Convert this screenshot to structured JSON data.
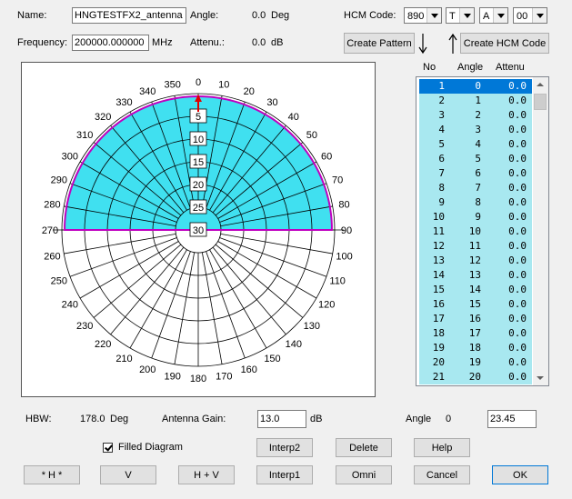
{
  "top": {
    "name_label": "Name:",
    "name_value": "HNGTESTFX2_antenna",
    "angle_label": "Angle:",
    "angle_value": "0.0",
    "angle_unit": "Deg",
    "hcm_label": "HCM Code:",
    "hcm_combo1": "890",
    "hcm_combo2": "T",
    "hcm_combo3": "A",
    "hcm_combo4": "00",
    "freq_label": "Frequency:",
    "freq_value": "200000.000000",
    "freq_unit": "MHz",
    "atten_label": "Attenu.:",
    "atten_value": "0.0",
    "atten_unit": "dB",
    "create_pattern": "Create Pattern",
    "create_hcm": "Create HCM Code"
  },
  "list": {
    "headers": [
      "No",
      "Angle",
      "Attenu"
    ],
    "rows": [
      [
        "1",
        "0",
        "0.0"
      ],
      [
        "2",
        "1",
        "0.0"
      ],
      [
        "3",
        "2",
        "0.0"
      ],
      [
        "4",
        "3",
        "0.0"
      ],
      [
        "5",
        "4",
        "0.0"
      ],
      [
        "6",
        "5",
        "0.0"
      ],
      [
        "7",
        "6",
        "0.0"
      ],
      [
        "8",
        "7",
        "0.0"
      ],
      [
        "9",
        "8",
        "0.0"
      ],
      [
        "10",
        "9",
        "0.0"
      ],
      [
        "11",
        "10",
        "0.0"
      ],
      [
        "12",
        "11",
        "0.0"
      ],
      [
        "13",
        "12",
        "0.0"
      ],
      [
        "14",
        "13",
        "0.0"
      ],
      [
        "15",
        "14",
        "0.0"
      ],
      [
        "16",
        "15",
        "0.0"
      ],
      [
        "17",
        "16",
        "0.0"
      ],
      [
        "18",
        "17",
        "0.0"
      ],
      [
        "19",
        "18",
        "0.0"
      ],
      [
        "20",
        "19",
        "0.0"
      ],
      [
        "21",
        "20",
        "0.0"
      ]
    ]
  },
  "polar": {
    "angle_labels": [
      "0",
      "10",
      "20",
      "30",
      "40",
      "50",
      "60",
      "70",
      "80",
      "90",
      "100",
      "110",
      "120",
      "130",
      "140",
      "150",
      "160",
      "170",
      "180",
      "190",
      "200",
      "210",
      "220",
      "230",
      "240",
      "250",
      "260",
      "270",
      "280",
      "290",
      "300",
      "310",
      "320",
      "330",
      "340",
      "350"
    ],
    "ring_labels": [
      "5",
      "10",
      "15",
      "20",
      "25",
      "30"
    ],
    "fill_color": "#40e0f0",
    "outline_color": "#c000c0",
    "marker_color": "#e00000"
  },
  "bottom": {
    "hbw_label": "HBW:",
    "hbw_value": "178.0",
    "hbw_unit": "Deg",
    "gain_label": "Antenna Gain:",
    "gain_value": "13.0",
    "gain_unit": "dB",
    "angle_label": "Angle",
    "angle_value": "0",
    "angle_field": "23.45",
    "filled_label": "Filled Diagram",
    "btn_interp2": "Interp2",
    "btn_delete": "Delete",
    "btn_help": "Help",
    "btn_h": "* H *",
    "btn_v": "V",
    "btn_hv": "H + V",
    "btn_interp1": "Interp1",
    "btn_omni": "Omni",
    "btn_cancel": "Cancel",
    "btn_ok": "OK"
  }
}
